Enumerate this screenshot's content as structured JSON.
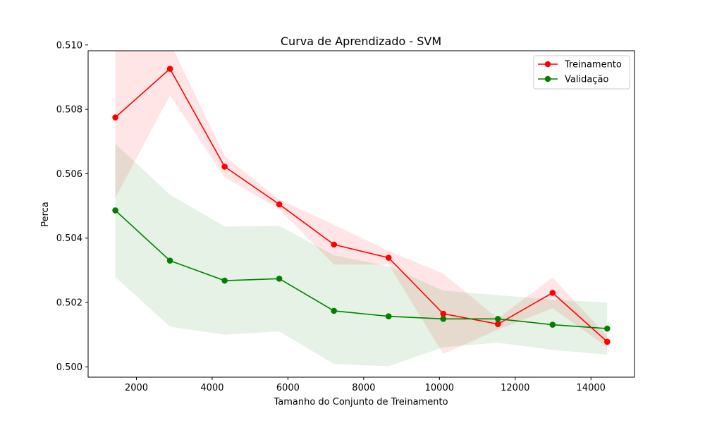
{
  "chart_data": {
    "type": "line",
    "title": "Curva de Aprendizado - SVM",
    "xlabel": "Tamanho do Conjunto de Treinamento",
    "ylabel": "Perca",
    "xlim": [
      725,
      15150
    ],
    "ylim": [
      0.49968,
      0.50982
    ],
    "xticks": [
      2000,
      4000,
      6000,
      8000,
      10000,
      12000,
      14000
    ],
    "xtick_labels": [
      "2000",
      "4000",
      "6000",
      "8000",
      "10000",
      "12000",
      "14000"
    ],
    "yticks": [
      0.5,
      0.502,
      0.504,
      0.506,
      0.508,
      0.51
    ],
    "ytick_labels": [
      "0.500",
      "0.502",
      "0.504",
      "0.506",
      "0.508",
      "0.510"
    ],
    "grid": false,
    "legend_position": "top-right",
    "x": [
      1443,
      2886,
      4329,
      5772,
      7215,
      8658,
      10101,
      11544,
      12987,
      14430
    ],
    "series": [
      {
        "name": "Treinamento",
        "color": "#ff0000",
        "band_color": "#ffcccc",
        "values": [
          0.50775,
          0.50926,
          0.50622,
          0.50505,
          0.5038,
          0.50339,
          0.50165,
          0.50133,
          0.5023,
          0.50078
        ],
        "upper": [
          0.51025,
          0.51008,
          0.50655,
          0.5052,
          0.50442,
          0.5036,
          0.5029,
          0.5015,
          0.50278,
          0.50095
        ],
        "lower": [
          0.50525,
          0.50844,
          0.50589,
          0.5049,
          0.50318,
          0.50318,
          0.5004,
          0.50116,
          0.50182,
          0.50061
        ]
      },
      {
        "name": "Validação",
        "color": "#008000",
        "band_color": "#cce6cc",
        "values": [
          0.50486,
          0.5033,
          0.50268,
          0.50274,
          0.50174,
          0.50157,
          0.50149,
          0.50149,
          0.50131,
          0.50119
        ],
        "upper": [
          0.50693,
          0.50535,
          0.50436,
          0.50438,
          0.50347,
          0.50312,
          0.50237,
          0.50223,
          0.50209,
          0.502
        ],
        "lower": [
          0.50279,
          0.50125,
          0.501,
          0.5011,
          0.50009,
          0.50002,
          0.50061,
          0.50075,
          0.50053,
          0.50038
        ]
      }
    ]
  }
}
